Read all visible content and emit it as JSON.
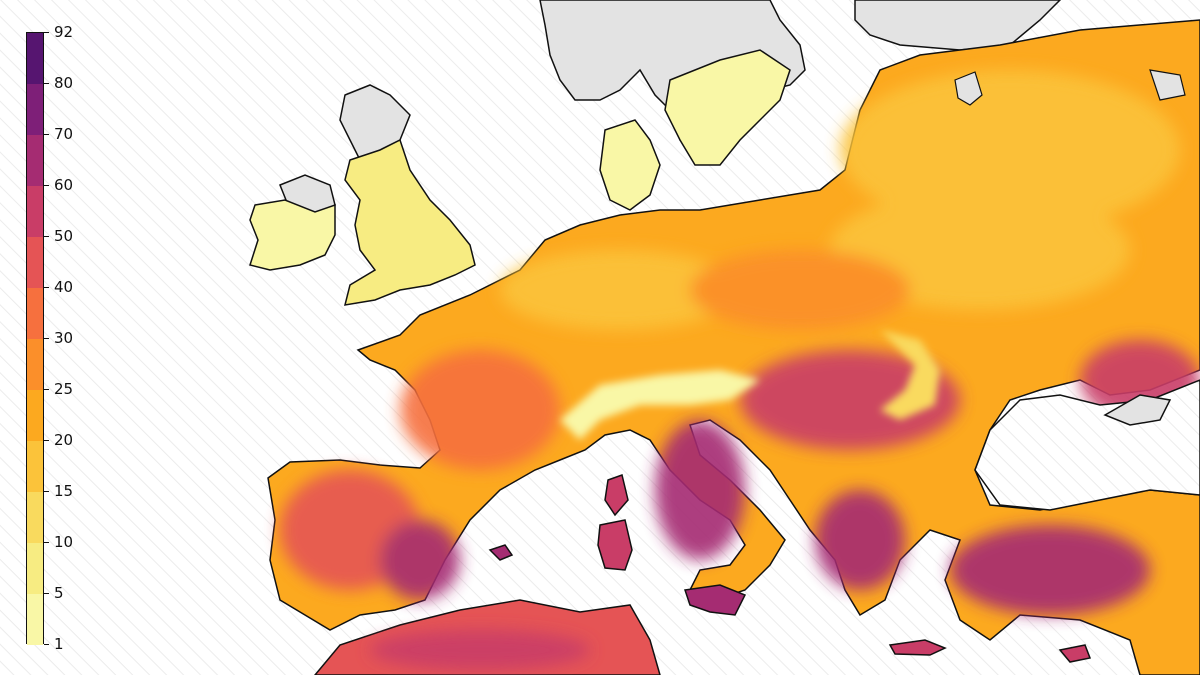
{
  "map": {
    "colorbar": {
      "ticks": [
        "1",
        "5",
        "10",
        "15",
        "20",
        "25",
        "30",
        "40",
        "50",
        "60",
        "70",
        "80",
        "92"
      ],
      "colors": [
        "#f9f7a6",
        "#f7ec82",
        "#f9da5e",
        "#fbc33a",
        "#fca91f",
        "#fb8f2a",
        "#f6703e",
        "#e55455",
        "#c93d67",
        "#a52c72",
        "#7e1f78",
        "#561570",
        "#23163c"
      ]
    },
    "land_color": "#e3e3e3",
    "sea_pattern": "diagonal-hatch",
    "coastline_color": "#111111",
    "regions": [
      {
        "name": "",
        "level": 1
      },
      {
        "name": "",
        "level": 3
      }
    ]
  }
}
